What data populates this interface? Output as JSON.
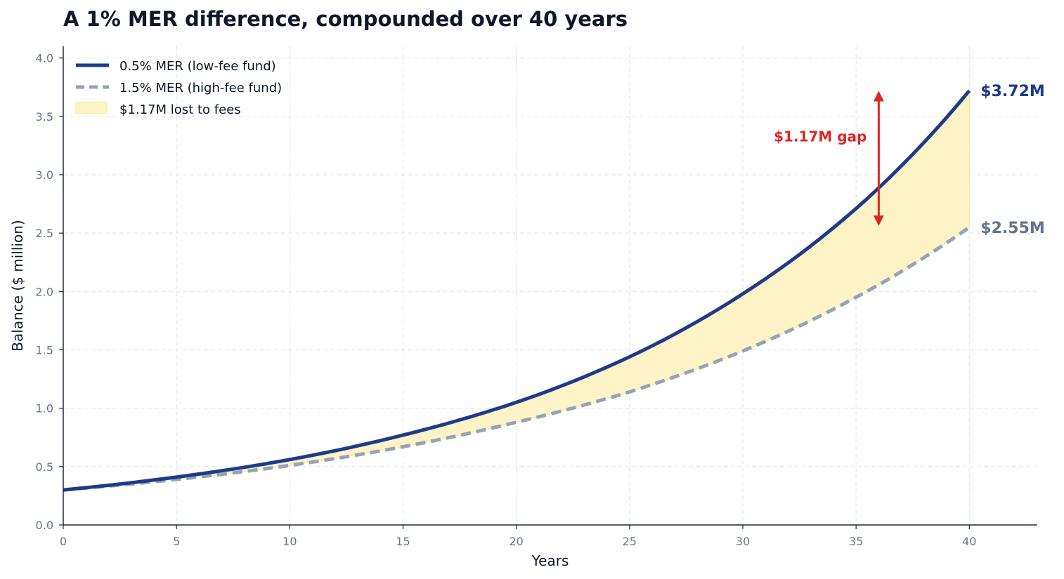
{
  "chart_data": {
    "type": "line",
    "title": "A 1% MER difference, compounded over 40 years",
    "xlabel": "Years",
    "ylabel": "Balance ($ million)",
    "xlim": [
      0,
      43
    ],
    "ylim": [
      0,
      4.1
    ],
    "x_ticks": [
      0,
      5,
      10,
      15,
      20,
      25,
      30,
      35,
      40
    ],
    "y_ticks": [
      "0.0",
      "0.5",
      "1.0",
      "1.5",
      "2.0",
      "2.5",
      "3.0",
      "3.5",
      "4.0"
    ],
    "grid": true,
    "legend_position": "top-left",
    "x": [
      0,
      5,
      10,
      15,
      20,
      25,
      30,
      35,
      40
    ],
    "series": [
      {
        "name": "0.5% MER (low-fee fund)",
        "style": "solid",
        "color": "#1e3a8a",
        "values": [
          0.3,
          0.41,
          0.56,
          0.77,
          1.05,
          1.44,
          1.98,
          2.71,
          3.72
        ]
      },
      {
        "name": "1.5% MER (high-fee fund)",
        "style": "dashed",
        "color": "#94a3b8",
        "values": [
          0.3,
          0.39,
          0.51,
          0.67,
          0.88,
          1.14,
          1.49,
          1.95,
          2.55
        ]
      }
    ],
    "fill_between": {
      "name": "$1.17M lost to fees",
      "color": "#fef3c7",
      "edge_color": "#fde68a"
    },
    "end_labels": [
      {
        "text": "$3.72M",
        "x": 40,
        "y": 3.72,
        "color": "#1e3a8a"
      },
      {
        "text": "$2.55M",
        "x": 40,
        "y": 2.55,
        "color": "#64748b"
      }
    ],
    "annotation": {
      "text": "$1.17M gap",
      "x": 36,
      "from_y": 2.58,
      "to_y": 3.7,
      "color": "#dc2626"
    }
  }
}
